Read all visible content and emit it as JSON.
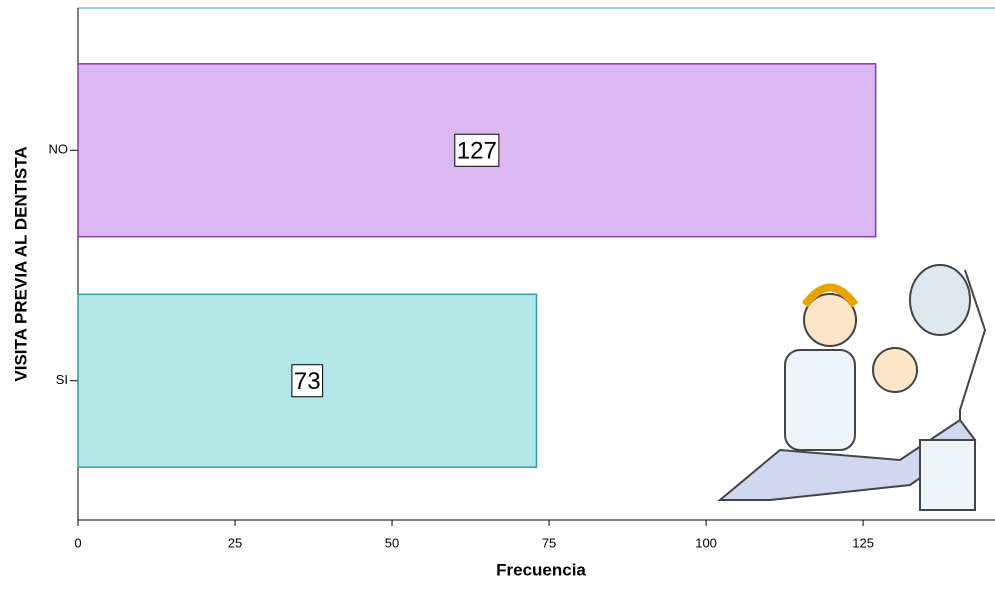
{
  "chart_data": {
    "type": "barh",
    "x_label": "Frecuencia",
    "y_label": "VISITA PREVIA AL DENTISTA",
    "categories": [
      "NO",
      "SI"
    ],
    "values": [
      127,
      73
    ],
    "colors": [
      "#dcb8f2",
      "#b3e6e8"
    ],
    "edge_colors": [
      "#8a3a9a",
      "#2aa0a0"
    ],
    "xlim": [
      0,
      146
    ],
    "xticks": [
      0,
      25,
      50,
      75,
      100,
      125
    ]
  }
}
